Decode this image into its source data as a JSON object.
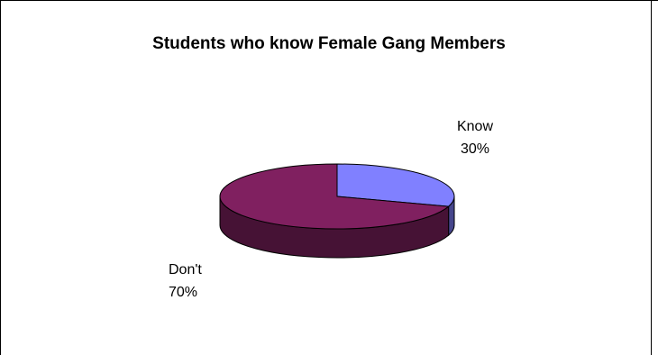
{
  "chart_data": {
    "type": "pie",
    "title": "Students who know Female Gang Members",
    "slices": [
      {
        "label": "Know",
        "value": 30,
        "value_label": "30%",
        "color": "#8080ff"
      },
      {
        "label": "Don't",
        "value": 70,
        "value_label": "70%",
        "color": "#802060"
      }
    ],
    "style": "3d",
    "legend": "none"
  }
}
